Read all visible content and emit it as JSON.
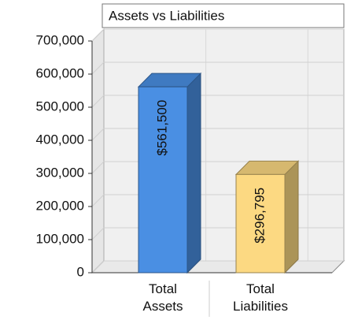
{
  "chart_data": {
    "type": "bar3d",
    "title": "Assets vs Liabilities",
    "categories": [
      "Total Assets",
      "Total Liabilities"
    ],
    "values": [
      561500,
      296795
    ],
    "value_labels": [
      "$561,500",
      "$296,795"
    ],
    "colors": [
      "#4a8fe3",
      "#fcd982"
    ],
    "ylim": [
      0,
      700000
    ],
    "yticks": [
      0,
      {
        "value": 100000,
        "label": "100,000"
      },
      {
        "value": 200000,
        "label": "200,000"
      },
      {
        "value": 300000,
        "label": "300,000"
      },
      {
        "value": 400000,
        "label": "400,000"
      },
      {
        "value": 500000,
        "label": "500,000"
      },
      {
        "value": 600000,
        "label": "600,000"
      },
      {
        "value": 700000,
        "label": "700,000"
      }
    ],
    "grid": true
  }
}
